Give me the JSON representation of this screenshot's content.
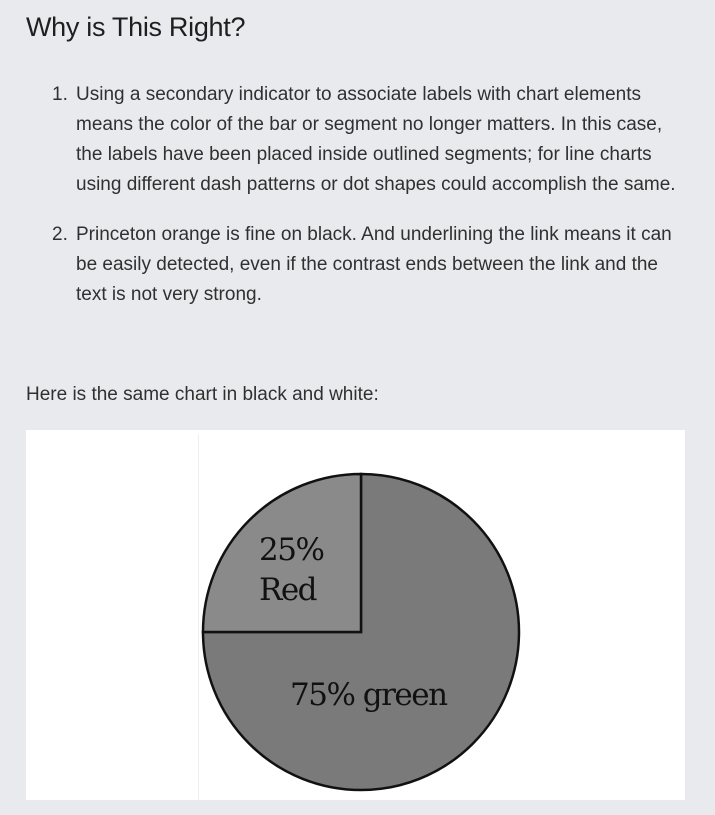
{
  "heading": "Why is This Right?",
  "reasons": [
    {
      "number": "1.",
      "text": "Using a secondary indicator to associate labels with chart elements means the color of the bar or segment no longer matters. In this case, the labels have been placed inside outlined segments; for line charts using different dash patterns or dot shapes could accomplish the same."
    },
    {
      "number": "2.",
      "text": "Princeton orange is fine on black. And underlining the link means it can be easily detected, even if the contrast ends between the link and the text is not very strong."
    }
  ],
  "intro": "Here is the same chart in black and white:",
  "chart_data": {
    "type": "pie",
    "title": "",
    "slices": [
      {
        "label_line1": "25%",
        "label_line2": "Red",
        "value": 25,
        "color": "#8a8a8a"
      },
      {
        "label_line1": "75% green",
        "label_line2": "",
        "value": 75,
        "color": "#7a7a7a"
      }
    ]
  }
}
